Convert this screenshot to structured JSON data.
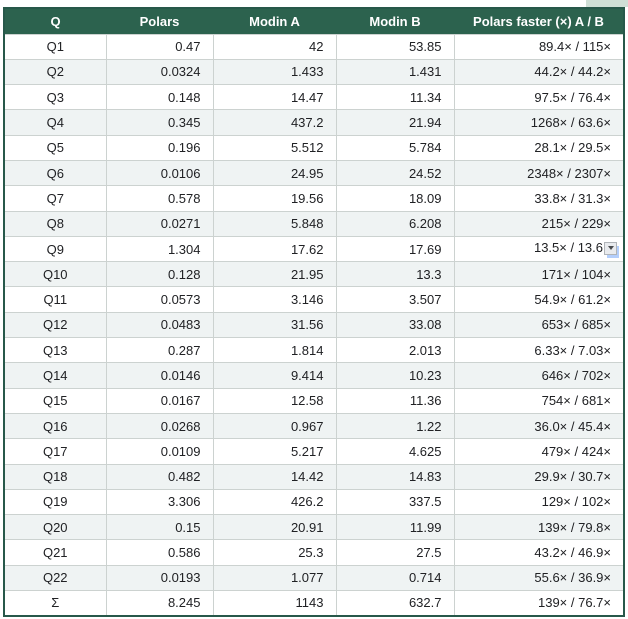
{
  "table": {
    "columns": [
      "Q",
      "Polars",
      "Modin A",
      "Modin B",
      "Polars faster (×) A / B"
    ],
    "rows": [
      [
        "Q1",
        "0.47",
        "42",
        "53.85",
        "89.4× / 115×"
      ],
      [
        "Q2",
        "0.0324",
        "1.433",
        "1.431",
        "44.2× / 44.2×"
      ],
      [
        "Q3",
        "0.148",
        "14.47",
        "11.34",
        "97.5× / 76.4×"
      ],
      [
        "Q4",
        "0.345",
        "437.2",
        "21.94",
        "1268× / 63.6×"
      ],
      [
        "Q5",
        "0.196",
        "5.512",
        "5.784",
        "28.1× / 29.5×"
      ],
      [
        "Q6",
        "0.0106",
        "24.95",
        "24.52",
        "2348× / 2307×"
      ],
      [
        "Q7",
        "0.578",
        "19.56",
        "18.09",
        "33.8× / 31.3×"
      ],
      [
        "Q8",
        "0.0271",
        "5.848",
        "6.208",
        "215× / 229×"
      ],
      [
        "Q9",
        "1.304",
        "17.62",
        "17.69",
        "13.5× / 13.6"
      ],
      [
        "Q10",
        "0.128",
        "21.95",
        "13.3",
        "171× / 104×"
      ],
      [
        "Q11",
        "0.0573",
        "3.146",
        "3.507",
        "54.9× / 61.2×"
      ],
      [
        "Q12",
        "0.0483",
        "31.56",
        "33.08",
        "653× / 685×"
      ],
      [
        "Q13",
        "0.287",
        "1.814",
        "2.013",
        "6.33× / 7.03×"
      ],
      [
        "Q14",
        "0.0146",
        "9.414",
        "10.23",
        "646× / 702×"
      ],
      [
        "Q15",
        "0.0167",
        "12.58",
        "11.36",
        "754× / 681×"
      ],
      [
        "Q16",
        "0.0268",
        "0.967",
        "1.22",
        "36.0× / 45.4×"
      ],
      [
        "Q17",
        "0.0109",
        "5.217",
        "4.625",
        "479× / 424×"
      ],
      [
        "Q18",
        "0.482",
        "14.42",
        "14.83",
        "29.9× / 30.7×"
      ],
      [
        "Q19",
        "3.306",
        "426.2",
        "337.5",
        "129× / 102×"
      ],
      [
        "Q20",
        "0.15",
        "20.91",
        "11.99",
        "139× / 79.8×"
      ],
      [
        "Q21",
        "0.586",
        "25.3",
        "27.5",
        "43.2× / 46.9×"
      ],
      [
        "Q22",
        "0.0193",
        "1.077",
        "0.714",
        "55.6× / 36.9×"
      ],
      [
        "Σ",
        "8.245",
        "1143",
        "632.7",
        "139× / 76.7×"
      ]
    ]
  },
  "dropdown": {
    "row": "Q9",
    "column": 4,
    "icon": "dropdown-arrow-icon"
  },
  "colors": {
    "header_background": "#2c624e",
    "header_text": "#ffffff",
    "stripe_row": "#eff3f3",
    "outer_border": "#27584a",
    "grid_line": "#ccd2d0",
    "dropdown_highlight": "#b3cefb"
  }
}
